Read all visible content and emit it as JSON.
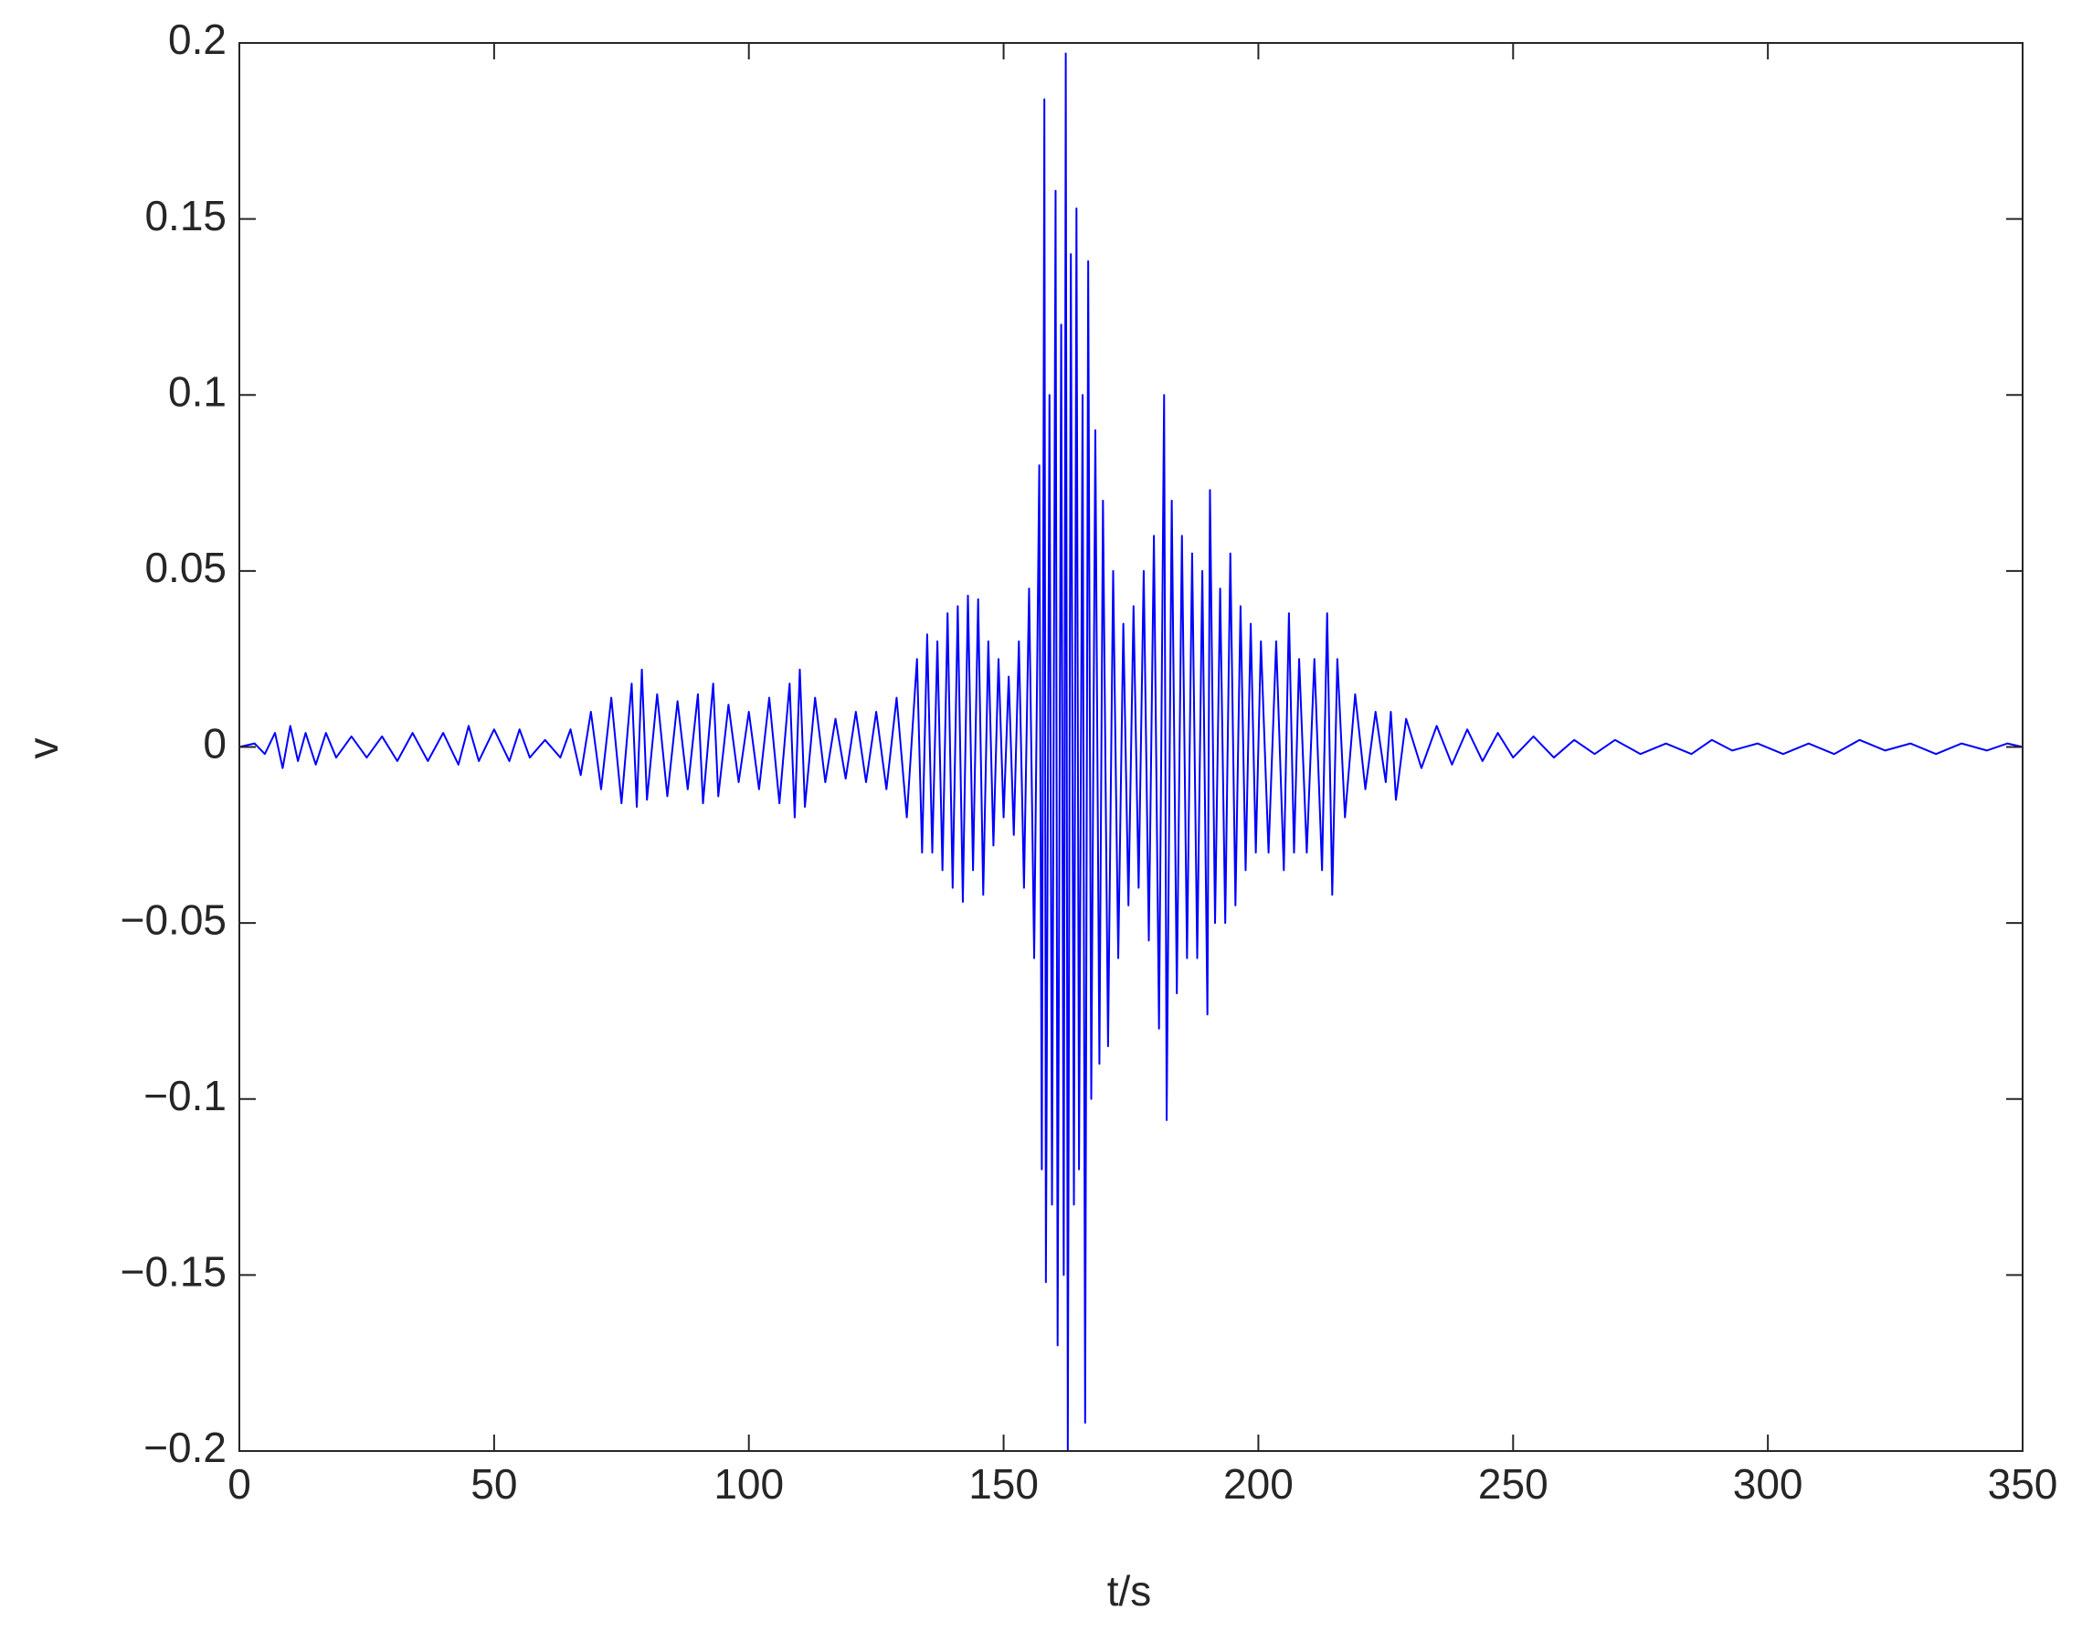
{
  "chart_data": {
    "type": "line",
    "xlabel": "t/s",
    "ylabel": "v",
    "color": "#0000ff",
    "xlim": [
      0,
      350
    ],
    "xticks": [
      0,
      50,
      100,
      150,
      200,
      250,
      300,
      350
    ],
    "ylim": [
      -0.2,
      0.2
    ],
    "yticks": [
      {
        "value": -0.2,
        "label": "−0.2"
      },
      {
        "value": -0.15,
        "label": "−0.15"
      },
      {
        "value": -0.1,
        "label": "−0.1"
      },
      {
        "value": -0.05,
        "label": "−0.05"
      },
      0,
      0.05,
      0.1,
      0.15,
      0.2
    ],
    "x": [
      0,
      3,
      5,
      7,
      8.5,
      10,
      11.5,
      13,
      15,
      17,
      19,
      22,
      25,
      28,
      31,
      34,
      37,
      40,
      43,
      45,
      47,
      50,
      53,
      55,
      57,
      60,
      63,
      65,
      67,
      69,
      71,
      73,
      75,
      77,
      78,
      79,
      80,
      82,
      84,
      86,
      88,
      90,
      91,
      93,
      94,
      96,
      98,
      100,
      102,
      104,
      106,
      108,
      109,
      110,
      111,
      113,
      115,
      117,
      119,
      121,
      123,
      125,
      127,
      129,
      131,
      133,
      134,
      135,
      136,
      137,
      138,
      139,
      140,
      141,
      142,
      143,
      144,
      145,
      146,
      147,
      148,
      149,
      150,
      151,
      152,
      153,
      154,
      155,
      156,
      157,
      157.5,
      158,
      158.3,
      159,
      159.5,
      160.2,
      160.6,
      161.3,
      161.8,
      162.2,
      162.6,
      163.2,
      163.8,
      164.3,
      164.8,
      165.5,
      166,
      166.6,
      167.2,
      168,
      168.8,
      169.5,
      170.5,
      171.5,
      172.5,
      173.5,
      174.5,
      175.5,
      176.5,
      177.5,
      178.5,
      179.5,
      180.5,
      181.5,
      182,
      183,
      184,
      185,
      186,
      187,
      188,
      189,
      190,
      190.5,
      191.5,
      192.5,
      193.5,
      194.5,
      195.5,
      196.5,
      197.5,
      198.5,
      199.5,
      200.5,
      202,
      203.5,
      205,
      206,
      207,
      208,
      209.5,
      211,
      212.5,
      213.5,
      214.5,
      215.5,
      217,
      219,
      221,
      223,
      225,
      226,
      227,
      229,
      232,
      235,
      238,
      241,
      244,
      247,
      250,
      254,
      258,
      262,
      266,
      270,
      275,
      280,
      285,
      289,
      293,
      298,
      303,
      308,
      313,
      318,
      323,
      328,
      333,
      338,
      343,
      347,
      350
    ],
    "values": [
      0,
      0.001,
      -0.002,
      0.004,
      -0.006,
      0.006,
      -0.004,
      0.004,
      -0.005,
      0.004,
      -0.003,
      0.003,
      -0.003,
      0.003,
      -0.004,
      0.004,
      -0.004,
      0.004,
      -0.005,
      0.006,
      -0.004,
      0.005,
      -0.004,
      0.005,
      -0.003,
      0.002,
      -0.003,
      0.005,
      -0.008,
      0.01,
      -0.012,
      0.014,
      -0.016,
      0.018,
      -0.017,
      0.022,
      -0.015,
      0.015,
      -0.014,
      0.013,
      -0.012,
      0.015,
      -0.016,
      0.018,
      -0.014,
      0.012,
      -0.01,
      0.01,
      -0.012,
      0.014,
      -0.016,
      0.018,
      -0.02,
      0.022,
      -0.017,
      0.014,
      -0.01,
      0.008,
      -0.009,
      0.01,
      -0.01,
      0.01,
      -0.012,
      0.014,
      -0.02,
      0.025,
      -0.03,
      0.032,
      -0.03,
      0.03,
      -0.035,
      0.038,
      -0.04,
      0.04,
      -0.044,
      0.043,
      -0.035,
      0.042,
      -0.042,
      0.03,
      -0.028,
      0.025,
      -0.02,
      0.02,
      -0.025,
      0.03,
      -0.04,
      0.045,
      -0.06,
      0.08,
      -0.12,
      0.184,
      -0.152,
      0.1,
      -0.13,
      0.158,
      -0.17,
      0.12,
      -0.15,
      0.197,
      -0.2,
      0.14,
      -0.13,
      0.153,
      -0.12,
      0.1,
      -0.192,
      0.138,
      -0.1,
      0.09,
      -0.09,
      0.07,
      -0.085,
      0.05,
      -0.06,
      0.035,
      -0.045,
      0.04,
      -0.04,
      0.05,
      -0.055,
      0.06,
      -0.08,
      0.1,
      -0.106,
      0.07,
      -0.07,
      0.06,
      -0.06,
      0.055,
      -0.06,
      0.05,
      -0.076,
      0.073,
      -0.05,
      0.045,
      -0.05,
      0.055,
      -0.045,
      0.04,
      -0.035,
      0.035,
      -0.03,
      0.03,
      -0.03,
      0.03,
      -0.035,
      0.038,
      -0.03,
      0.025,
      -0.03,
      0.025,
      -0.035,
      0.038,
      -0.042,
      0.025,
      -0.02,
      0.015,
      -0.012,
      0.01,
      -0.01,
      0.01,
      -0.015,
      0.008,
      -0.006,
      0.006,
      -0.005,
      0.005,
      -0.004,
      0.004,
      -0.003,
      0.003,
      -0.003,
      0.002,
      -0.002,
      0.002,
      -0.002,
      0.001,
      -0.002,
      0.002,
      -0.001,
      0.001,
      -0.002,
      0.001,
      -0.002,
      0.002,
      -0.001,
      0.001,
      -0.002,
      0.001,
      -0.001,
      0.001,
      0
    ]
  }
}
